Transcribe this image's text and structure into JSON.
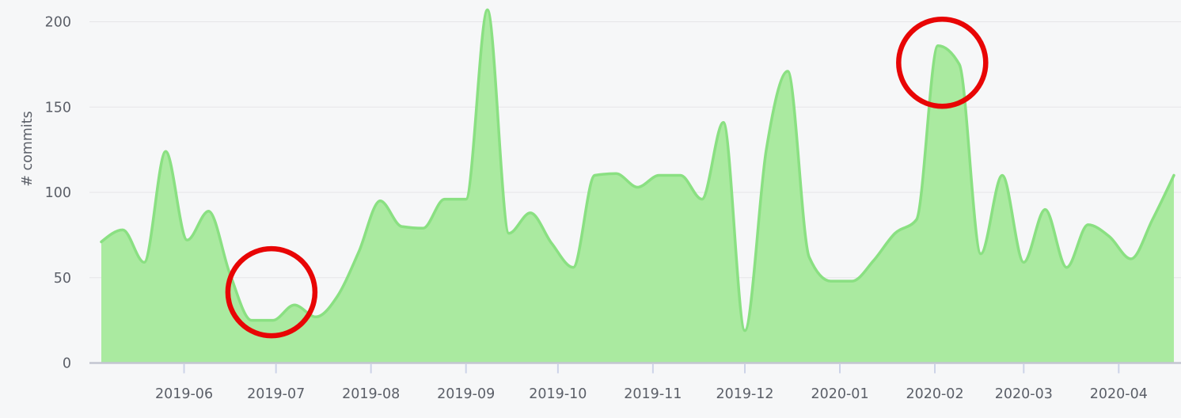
{
  "colors": {
    "background": "#f6f7f8",
    "area_fill": "#aaeaa0",
    "line": "#8ae082",
    "gridline": "#e5e5e8",
    "axis_line": "#c3c6d1",
    "tick_mark": "#ccd3e8",
    "text": "#5b5f68",
    "annotation_red": "#e80505"
  },
  "chart_data": {
    "type": "area",
    "title": "",
    "xlabel": "",
    "ylabel": "# commits",
    "series_name": "commits",
    "legend": "none",
    "grid": "horizontal",
    "x_unit": "week",
    "x": [
      "2019-05-05",
      "2019-05-12",
      "2019-05-19",
      "2019-05-26",
      "2019-06-02",
      "2019-06-09",
      "2019-06-16",
      "2019-06-23",
      "2019-06-30",
      "2019-07-07",
      "2019-07-14",
      "2019-07-21",
      "2019-07-28",
      "2019-08-04",
      "2019-08-11",
      "2019-08-18",
      "2019-08-25",
      "2019-09-01",
      "2019-09-08",
      "2019-09-15",
      "2019-09-22",
      "2019-09-29",
      "2019-10-06",
      "2019-10-13",
      "2019-10-20",
      "2019-10-27",
      "2019-11-03",
      "2019-11-10",
      "2019-11-17",
      "2019-11-24",
      "2019-12-01",
      "2019-12-08",
      "2019-12-15",
      "2019-12-22",
      "2019-12-29",
      "2020-01-05",
      "2020-01-12",
      "2020-01-19",
      "2020-01-26",
      "2020-02-02",
      "2020-02-09",
      "2020-02-16",
      "2020-02-23",
      "2020-03-01",
      "2020-03-08",
      "2020-03-15",
      "2020-03-22",
      "2020-03-29",
      "2020-04-05",
      "2020-04-12",
      "2020-04-19"
    ],
    "values": [
      71,
      78,
      59,
      124,
      72,
      89,
      52,
      25,
      25,
      34,
      27,
      39,
      65,
      95,
      80,
      79,
      96,
      96,
      207,
      76,
      88,
      70,
      56,
      110,
      111,
      103,
      110,
      110,
      96,
      141,
      19,
      125,
      171,
      62,
      48,
      48,
      60,
      76,
      84,
      186,
      175,
      64,
      110,
      59,
      90,
      56,
      81,
      74,
      61,
      84,
      110
    ],
    "yticks": [
      0,
      50,
      100,
      150,
      200
    ],
    "ylim": [
      0,
      213
    ],
    "xticks": [
      {
        "label": "2019-06",
        "week": 3.857
      },
      {
        "label": "2019-07",
        "week": 8.143
      },
      {
        "label": "2019-08",
        "week": 12.571
      },
      {
        "label": "2019-09",
        "week": 17.0
      },
      {
        "label": "2019-10",
        "week": 21.286
      },
      {
        "label": "2019-11",
        "week": 25.714
      },
      {
        "label": "2019-12",
        "week": 30.0
      },
      {
        "label": "2020-01",
        "week": 34.429
      },
      {
        "label": "2020-02",
        "week": 38.857
      },
      {
        "label": "2020-03",
        "week": 43.0
      },
      {
        "label": "2020-04",
        "week": 47.429
      }
    ],
    "annotations": [
      {
        "name": "low-activity-circle",
        "shape": "circle",
        "center_week": 7.93,
        "center_value": 41.5,
        "radius_px": 55,
        "stroke_px": 6.5
      },
      {
        "name": "peak-activity-circle",
        "shape": "circle",
        "center_week": 39.2,
        "center_value": 176,
        "radius_px": 55,
        "stroke_px": 6.5
      }
    ]
  }
}
